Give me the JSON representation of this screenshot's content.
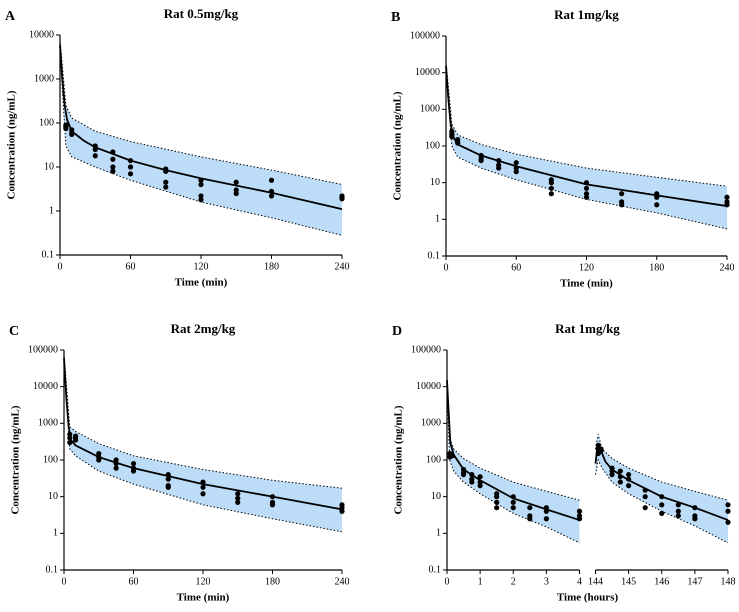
{
  "chart_data": [
    {
      "type": "scatter",
      "panel": "A",
      "title": "Rat 0.5mg/kg",
      "x_label": "Time (min)",
      "y_label": "Concentration (ng/mL)",
      "log_y": true,
      "xlim": [
        0,
        240
      ],
      "xticks": [
        0,
        60,
        120,
        180,
        240
      ],
      "ylim": [
        0.1,
        10000
      ],
      "yticks": [
        0.1,
        1,
        10,
        100,
        1000,
        10000
      ],
      "observed": {
        "color": "#000000",
        "x": [
          5,
          5,
          5,
          5,
          10,
          10,
          10,
          30,
          30,
          30,
          45,
          45,
          45,
          45,
          60,
          60,
          60,
          90,
          90,
          90,
          90,
          120,
          120,
          120,
          120,
          150,
          150,
          150,
          180,
          180,
          180,
          240,
          240,
          240
        ],
        "values": [
          90,
          80,
          75,
          85,
          70,
          55,
          60,
          30,
          25,
          18,
          22,
          15,
          10,
          8,
          14,
          10,
          7,
          9,
          8,
          4.5,
          3.5,
          5,
          4,
          2.2,
          1.8,
          4.5,
          3,
          2.5,
          5,
          2.8,
          2.2,
          2.2,
          2,
          1.9
        ]
      },
      "lines": [
        {
          "color": "#000000",
          "x": [
            0,
            2,
            4,
            6,
            10,
            20,
            30,
            60,
            90,
            120,
            180,
            240
          ],
          "values": [
            6000,
            1000,
            250,
            120,
            65,
            40,
            28,
            14,
            8.5,
            5.5,
            2.6,
            1.1
          ]
        }
      ],
      "bands": [
        {
          "color": "#bcdcf7",
          "x": [
            0,
            5,
            10,
            30,
            60,
            120,
            180,
            240
          ],
          "upper": [
            8000,
            250,
            130,
            65,
            38,
            17,
            8.5,
            4
          ],
          "lower": [
            4000,
            30,
            17,
            10,
            5,
            1.6,
            0.7,
            0.28
          ]
        }
      ]
    },
    {
      "type": "scatter",
      "panel": "B",
      "title": "Rat 1mg/kg",
      "x_label": "Time (min)",
      "y_label": "Concentration (ng/mL)",
      "log_y": true,
      "xlim": [
        0,
        240
      ],
      "xticks": [
        0,
        60,
        120,
        180,
        240
      ],
      "ylim": [
        0.1,
        100000
      ],
      "yticks": [
        0.1,
        1,
        10,
        100,
        1000,
        10000,
        100000
      ],
      "observed": {
        "color": "#000000",
        "x": [
          5,
          5,
          5,
          5,
          10,
          10,
          10,
          30,
          30,
          30,
          45,
          45,
          45,
          60,
          60,
          60,
          90,
          90,
          90,
          90,
          120,
          120,
          120,
          120,
          150,
          150,
          150,
          180,
          180,
          180,
          240,
          240,
          240
        ],
        "values": [
          250,
          200,
          180,
          220,
          150,
          120,
          130,
          55,
          45,
          40,
          40,
          30,
          25,
          35,
          25,
          20,
          12,
          10,
          7,
          5,
          10,
          7,
          5,
          4,
          5,
          3,
          2.5,
          5,
          4,
          2.5,
          4,
          3,
          2.5
        ]
      },
      "lines": [
        {
          "color": "#000000",
          "x": [
            0,
            2,
            4,
            6,
            10,
            30,
            60,
            120,
            180,
            240
          ],
          "values": [
            15000,
            2000,
            400,
            180,
            110,
            55,
            28,
            9,
            4.5,
            2.3
          ]
        }
      ],
      "bands": [
        {
          "color": "#bcdcf7",
          "x": [
            0,
            5,
            10,
            30,
            60,
            120,
            180,
            240
          ],
          "upper": [
            20000,
            400,
            200,
            110,
            60,
            25,
            14,
            8
          ],
          "lower": [
            10000,
            100,
            50,
            25,
            12,
            3.5,
            1.5,
            0.55
          ]
        }
      ]
    },
    {
      "type": "scatter",
      "panel": "C",
      "title": "Rat 2mg/kg",
      "x_label": "Time (min)",
      "y_label": "Concentration (ng/mL)",
      "log_y": true,
      "xlim": [
        0,
        240
      ],
      "xticks": [
        0,
        60,
        120,
        180,
        240
      ],
      "ylim": [
        0.1,
        100000
      ],
      "yticks": [
        0.1,
        1,
        10,
        100,
        1000,
        10000,
        100000
      ],
      "observed": {
        "color": "#000000",
        "x": [
          5,
          5,
          5,
          10,
          10,
          10,
          30,
          30,
          30,
          45,
          45,
          45,
          60,
          60,
          60,
          90,
          90,
          90,
          90,
          120,
          120,
          120,
          150,
          150,
          150,
          180,
          180,
          180,
          240,
          240,
          240
        ],
        "values": [
          500,
          400,
          300,
          450,
          350,
          400,
          150,
          120,
          100,
          100,
          80,
          60,
          80,
          60,
          50,
          40,
          30,
          20,
          18,
          25,
          18,
          12,
          12,
          9,
          7,
          10,
          7,
          6,
          6,
          5,
          4
        ]
      },
      "lines": [
        {
          "color": "#000000",
          "x": [
            0,
            2,
            4,
            6,
            10,
            30,
            60,
            120,
            180,
            240
          ],
          "values": [
            60000,
            5000,
            800,
            350,
            250,
            120,
            60,
            22,
            10,
            4.5
          ]
        }
      ],
      "bands": [
        {
          "color": "#bcdcf7",
          "x": [
            0,
            5,
            10,
            30,
            60,
            120,
            180,
            240
          ],
          "upper": [
            80000,
            800,
            600,
            280,
            130,
            55,
            28,
            17
          ],
          "lower": [
            40000,
            200,
            130,
            50,
            22,
            6,
            2.5,
            1.1
          ]
        }
      ]
    },
    {
      "type": "scatter",
      "panel": "D",
      "title": "Rat 1mg/kg",
      "x_label": "Time (hours)",
      "y_label": "Concentration (ng/mL)",
      "log_y": true,
      "xlim": [
        0,
        148
      ],
      "xbreak": [
        4,
        144
      ],
      "xticks": [
        0,
        1,
        2,
        3,
        4,
        144,
        145,
        146,
        147,
        148
      ],
      "ylim": [
        0.1,
        100000
      ],
      "yticks": [
        0.1,
        1,
        10,
        100,
        1000,
        10000,
        100000
      ],
      "observed": {
        "color": "#000000",
        "x": [
          0.083,
          0.083,
          0.167,
          0.5,
          0.5,
          0.5,
          0.75,
          0.75,
          0.75,
          1,
          1,
          1,
          1.5,
          1.5,
          1.5,
          1.5,
          2,
          2,
          2,
          2.5,
          2.5,
          2.5,
          3,
          3,
          3,
          4,
          4,
          4,
          144.083,
          144.083,
          144.083,
          144.167,
          144.167,
          144.5,
          144.5,
          144.5,
          144.75,
          144.75,
          144.75,
          145,
          145,
          145,
          145.5,
          145.5,
          145.5,
          146,
          146,
          146,
          146.5,
          146.5,
          146.5,
          147,
          147,
          147,
          148,
          148,
          148
        ],
        "values": [
          150,
          120,
          130,
          55,
          45,
          40,
          40,
          30,
          25,
          35,
          25,
          20,
          12,
          10,
          7,
          5,
          10,
          7,
          5,
          5,
          3,
          2.5,
          5,
          4,
          2.5,
          4,
          3,
          2.5,
          250,
          200,
          150,
          200,
          180,
          60,
          50,
          40,
          50,
          35,
          25,
          40,
          30,
          20,
          15,
          10,
          5,
          10,
          6,
          3.5,
          6,
          4,
          3,
          5,
          3,
          2.5,
          6,
          4,
          2
        ]
      },
      "lines": [
        {
          "color": "#000000",
          "x": [
            0,
            0.05,
            0.1,
            0.2,
            0.5,
            1,
            2,
            3,
            4
          ],
          "values": [
            15000,
            2000,
            300,
            140,
            55,
            28,
            9,
            4.5,
            2.3
          ]
        },
        {
          "color": "#000000",
          "x": [
            144,
            144.05,
            144.1,
            144.3,
            144.5,
            145,
            146,
            147,
            148
          ],
          "values": [
            80,
            200,
            250,
            90,
            55,
            28,
            10,
            5,
            2.3
          ]
        }
      ],
      "bands": [
        {
          "color": "#bcdcf7",
          "x": [
            0,
            0.08,
            0.2,
            0.5,
            1,
            2,
            3,
            4
          ],
          "upper": [
            20000,
            400,
            200,
            110,
            60,
            25,
            14,
            8
          ],
          "lower": [
            10000,
            100,
            50,
            25,
            12,
            3.5,
            1.5,
            0.55
          ]
        },
        {
          "color": "#bcdcf7",
          "x": [
            144,
            144.08,
            144.2,
            144.5,
            145,
            146,
            147,
            148
          ],
          "upper": [
            200,
            500,
            200,
            110,
            60,
            25,
            14,
            8
          ],
          "lower": [
            40,
            100,
            60,
            25,
            12,
            4,
            1.6,
            0.55
          ]
        }
      ]
    }
  ]
}
